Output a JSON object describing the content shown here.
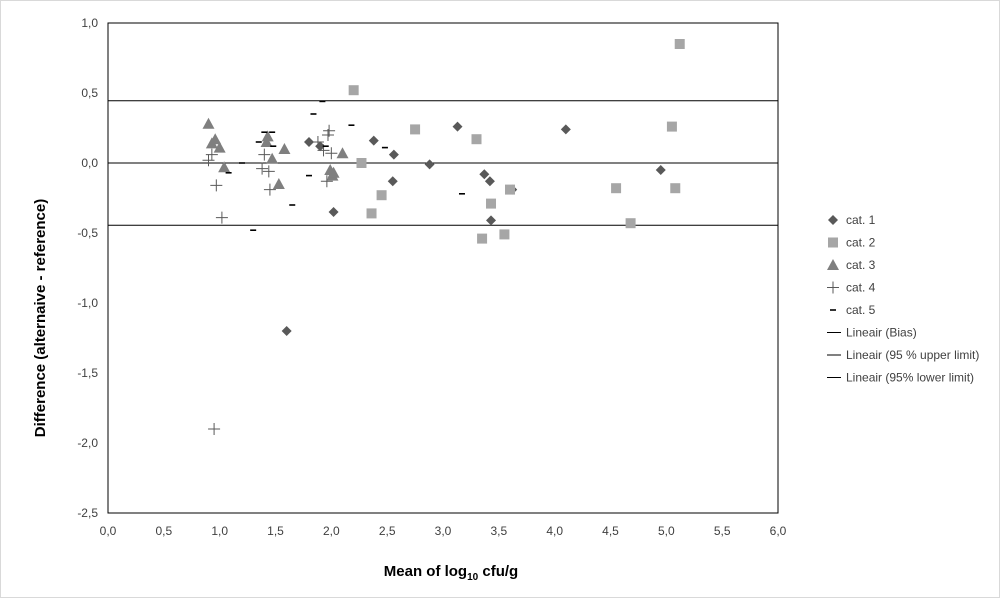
{
  "chart_data": {
    "type": "scatter",
    "title": "",
    "xlabel": {
      "prefix": "Mean of log",
      "sub": "10",
      "suffix": " cfu/g"
    },
    "ylabel": "Difference (alternaive - reference)",
    "xlim": [
      0,
      6
    ],
    "ylim": [
      -2.5,
      1
    ],
    "x_ticks": [
      "0,0",
      "0,5",
      "1,0",
      "1,5",
      "2,0",
      "2,5",
      "3,0",
      "3,5",
      "4,0",
      "4,5",
      "5,0",
      "5,5",
      "6,0"
    ],
    "y_ticks": [
      "1,0",
      "0,5",
      "0,0",
      "-0,5",
      "-1,0",
      "-1,5",
      "-2,0",
      "-2,5"
    ],
    "grid": false,
    "legend_position": "right",
    "series": [
      {
        "name": "cat. 1",
        "marker": "diamond",
        "color": "#595959",
        "points": [
          [
            1.6,
            -1.2
          ],
          [
            1.8,
            0.15
          ],
          [
            1.9,
            0.12
          ],
          [
            2.02,
            -0.35
          ],
          [
            2.38,
            0.16
          ],
          [
            2.55,
            -0.13
          ],
          [
            2.56,
            0.06
          ],
          [
            2.88,
            -0.01
          ],
          [
            3.13,
            0.26
          ],
          [
            3.37,
            -0.08
          ],
          [
            3.42,
            -0.13
          ],
          [
            3.43,
            -0.41
          ],
          [
            3.62,
            -0.19
          ],
          [
            4.1,
            0.24
          ],
          [
            4.95,
            -0.05
          ]
        ]
      },
      {
        "name": "cat. 2",
        "marker": "square",
        "color": "#a6a6a6",
        "points": [
          [
            2.2,
            0.52
          ],
          [
            2.27,
            0.0
          ],
          [
            2.36,
            -0.36
          ],
          [
            2.45,
            -0.23
          ],
          [
            2.75,
            0.24
          ],
          [
            3.3,
            0.17
          ],
          [
            3.35,
            -0.54
          ],
          [
            3.43,
            -0.29
          ],
          [
            3.55,
            -0.51
          ],
          [
            3.6,
            -0.19
          ],
          [
            4.55,
            -0.18
          ],
          [
            4.68,
            -0.43
          ],
          [
            5.05,
            0.26
          ],
          [
            5.08,
            -0.18
          ],
          [
            5.12,
            0.85
          ]
        ]
      },
      {
        "name": "cat. 3",
        "marker": "triangle",
        "color": "#7f7f7f",
        "points": [
          [
            0.9,
            0.28
          ],
          [
            0.93,
            0.14
          ],
          [
            0.96,
            0.17
          ],
          [
            1.0,
            0.11
          ],
          [
            1.04,
            -0.03
          ],
          [
            1.42,
            0.15
          ],
          [
            1.43,
            0.19
          ],
          [
            1.47,
            0.03
          ],
          [
            1.53,
            -0.15
          ],
          [
            1.58,
            0.1
          ],
          [
            1.99,
            -0.05
          ],
          [
            2.01,
            -0.09
          ],
          [
            2.02,
            -0.07
          ],
          [
            2.1,
            0.07
          ]
        ]
      },
      {
        "name": "cat. 4",
        "marker": "plus",
        "color": "#595959",
        "points": [
          [
            0.9,
            0.02
          ],
          [
            0.93,
            0.06
          ],
          [
            0.95,
            -1.9
          ],
          [
            0.97,
            -0.16
          ],
          [
            1.02,
            -0.39
          ],
          [
            1.38,
            -0.04
          ],
          [
            1.4,
            0.06
          ],
          [
            1.44,
            -0.06
          ],
          [
            1.45,
            -0.19
          ],
          [
            1.88,
            0.15
          ],
          [
            1.93,
            0.09
          ],
          [
            1.96,
            -0.13
          ],
          [
            1.97,
            0.2
          ],
          [
            1.98,
            0.23
          ],
          [
            2.0,
            0.07
          ]
        ]
      },
      {
        "name": "cat. 5",
        "marker": "dash",
        "color": "#000000",
        "points": [
          [
            1.08,
            -0.07
          ],
          [
            1.2,
            0.0
          ],
          [
            1.3,
            -0.48
          ],
          [
            1.35,
            0.15
          ],
          [
            1.4,
            0.22
          ],
          [
            1.47,
            0.22
          ],
          [
            1.48,
            0.12
          ],
          [
            1.65,
            -0.3
          ],
          [
            1.8,
            -0.09
          ],
          [
            1.84,
            0.35
          ],
          [
            1.92,
            0.44
          ],
          [
            1.95,
            0.12
          ],
          [
            2.18,
            0.27
          ],
          [
            2.48,
            0.11
          ],
          [
            3.17,
            -0.22
          ]
        ]
      }
    ],
    "lines": [
      {
        "name": "Lineair (Bias)",
        "y": 0.0,
        "color": "#000000"
      },
      {
        "name": "Lineair (95 % upper limit)",
        "y": 0.445,
        "color": "#000000"
      },
      {
        "name": "Lineair (95% lower limit)",
        "y": -0.445,
        "color": "#000000"
      }
    ]
  }
}
